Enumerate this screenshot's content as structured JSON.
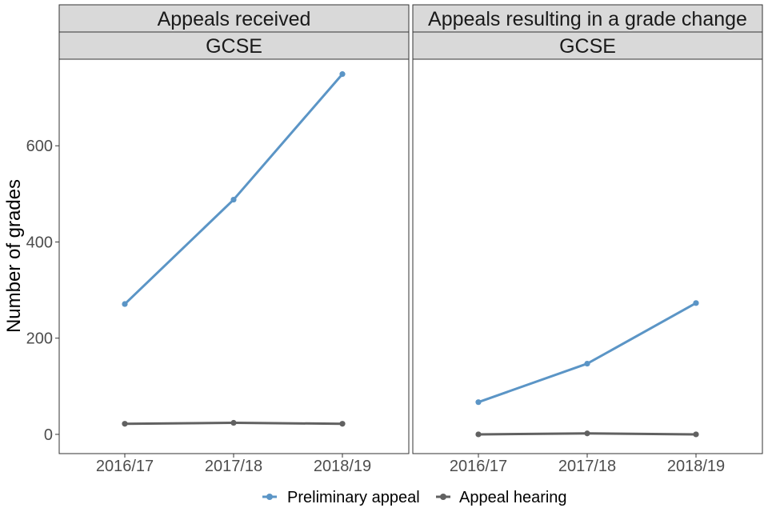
{
  "chart_data": {
    "type": "line",
    "ylabel": "Number of grades",
    "ylim": [
      -40,
      780
    ],
    "yticks": [
      0,
      200,
      400,
      600
    ],
    "categories": [
      "2016/17",
      "2017/18",
      "2018/19"
    ],
    "grid": false,
    "legend_position": "bottom",
    "legend": [
      {
        "name": "Preliminary appeal",
        "color": "#5b95c6"
      },
      {
        "name": "Appeal hearing",
        "color": "#616161"
      }
    ],
    "panels": [
      {
        "title": "Appeals received",
        "subtitle": "GCSE",
        "series": [
          {
            "name": "Preliminary appeal",
            "values": [
              271,
              488,
              749
            ]
          },
          {
            "name": "Appeal hearing",
            "values": [
              22,
              24,
              22
            ]
          }
        ]
      },
      {
        "title": "Appeals resulting in a grade change",
        "subtitle": "GCSE",
        "series": [
          {
            "name": "Preliminary appeal",
            "values": [
              67,
              147,
              273
            ]
          },
          {
            "name": "Appeal hearing",
            "values": [
              0,
              2,
              0
            ]
          }
        ]
      }
    ]
  }
}
